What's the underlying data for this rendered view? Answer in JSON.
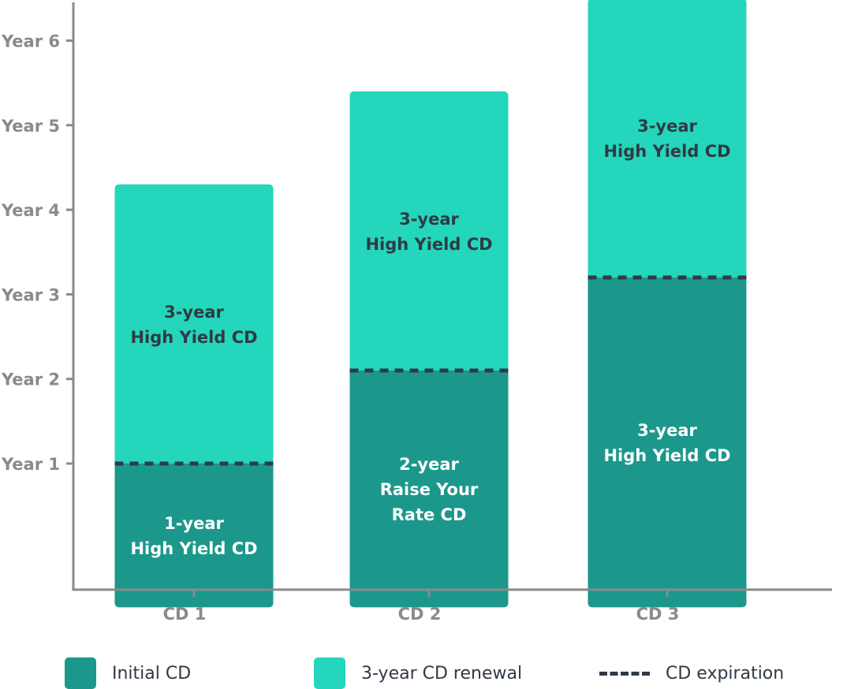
{
  "chart_data": {
    "type": "bar",
    "stacked": true,
    "categories": [
      "CD 1",
      "CD 2",
      "CD 3"
    ],
    "y_ticks": [
      {
        "value": 1,
        "label": "Year 1"
      },
      {
        "value": 2,
        "label": "Year 2"
      },
      {
        "value": 3,
        "label": "Year 3"
      },
      {
        "value": 4,
        "label": "Year 4"
      },
      {
        "value": 5,
        "label": "Year 5"
      },
      {
        "value": 6,
        "label": "Year 6"
      }
    ],
    "ylim": [
      -0.8,
      6.5
    ],
    "series": [
      {
        "name": "Initial CD",
        "color": "#1b988b",
        "segments": [
          {
            "category": "CD 1",
            "start": -0.7,
            "end": 1,
            "label": [
              "1-year",
              "High Yield CD"
            ]
          },
          {
            "category": "CD 2",
            "start": -0.7,
            "end": 2.1,
            "label": [
              "2-year",
              "Raise Your",
              "Rate CD"
            ]
          },
          {
            "category": "CD 3",
            "start": -0.7,
            "end": 3.2,
            "label": [
              "3-year",
              "High Yield CD"
            ]
          }
        ]
      },
      {
        "name": "3-year CD renewal",
        "color": "#24d6bb",
        "segments": [
          {
            "category": "CD 1",
            "start": 1,
            "end": 4.3,
            "label": [
              "3-year",
              "High Yield CD"
            ]
          },
          {
            "category": "CD 2",
            "start": 2.1,
            "end": 5.4,
            "label": [
              "3-year",
              "High Yield CD"
            ]
          },
          {
            "category": "CD 3",
            "start": 3.2,
            "end": 6.5,
            "label": [
              "3-year",
              "High Yield CD"
            ]
          }
        ]
      }
    ],
    "expirations": [
      {
        "category": "CD 1",
        "value": 1
      },
      {
        "category": "CD 2",
        "value": 2.1
      },
      {
        "category": "CD 3",
        "value": 3.2
      }
    ],
    "grid": false,
    "legend": {
      "position": "bottom",
      "items": [
        {
          "label": "Initial CD",
          "kind": "swatch",
          "color": "#1b988b"
        },
        {
          "label": "3-year CD renewal",
          "kind": "swatch",
          "color": "#24d6bb"
        },
        {
          "label": "CD expiration",
          "kind": "dash",
          "color": "#2f3a45"
        }
      ]
    }
  }
}
